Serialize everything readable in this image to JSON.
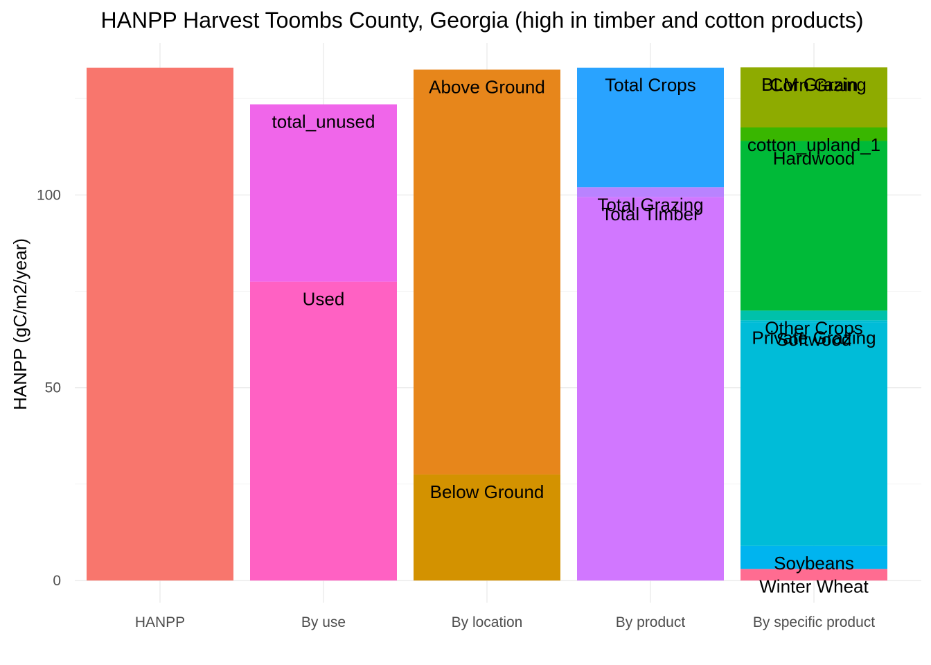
{
  "chart_data": {
    "type": "bar",
    "stacked": true,
    "title": "HANPP Harvest Toombs County, Georgia (high in timber and cotton products)",
    "xlabel": "",
    "ylabel": "HANPP (gC/m2/year)",
    "ylim": [
      -5,
      139
    ],
    "yticks": [
      0,
      50,
      100
    ],
    "grid": true,
    "legend": "none",
    "categories": [
      "HANPP",
      "By use",
      "By location",
      "By product",
      "By specific product"
    ],
    "stacks": [
      {
        "category": "HANPP",
        "segments": [
          {
            "label": "",
            "value": 133,
            "color": "#F8766D"
          }
        ]
      },
      {
        "category": "By use",
        "segments": [
          {
            "label": "Used",
            "value": 77.5,
            "color": "#FF61C3"
          },
          {
            "label": "total_unused",
            "value": 46,
            "color": "#F066EA"
          }
        ]
      },
      {
        "category": "By location",
        "segments": [
          {
            "label": "Below Ground",
            "value": 27.5,
            "color": "#D39200"
          },
          {
            "label": "Above Ground",
            "value": 105,
            "color": "#E7861B"
          }
        ]
      },
      {
        "category": "By product",
        "segments": [
          {
            "label": "Total Timber",
            "value": 99.5,
            "color": "#D177FF"
          },
          {
            "label": "Total Grazing",
            "value": 2.5,
            "color": "#B983FF"
          },
          {
            "label": "Total Crops",
            "value": 31,
            "color": "#29A3FF"
          }
        ]
      },
      {
        "category": "By specific product",
        "segments": [
          {
            "label": "Winter Wheat",
            "value": 3,
            "color": "#FF6C91"
          },
          {
            "label": "Soybeans",
            "value": 6,
            "color": "#00B4EF"
          },
          {
            "label": "Softwood",
            "value": 58,
            "color": "#00BCD8"
          },
          {
            "label": "Private Grazing",
            "value": 0.5,
            "color": "#00BDD1"
          },
          {
            "label": "Other Crops",
            "value": 2.5,
            "color": "#00C1AA"
          },
          {
            "label": "Hardwood",
            "value": 44,
            "color": "#00BA38"
          },
          {
            "label": "cotton_upland_1",
            "value": 3.5,
            "color": "#39B600"
          },
          {
            "label": "Corn Grain",
            "value": 15.5,
            "color": "#8EAB00"
          },
          {
            "label": "BLM Grazing",
            "value": 0.1,
            "color": "#93AA00"
          }
        ]
      }
    ]
  }
}
